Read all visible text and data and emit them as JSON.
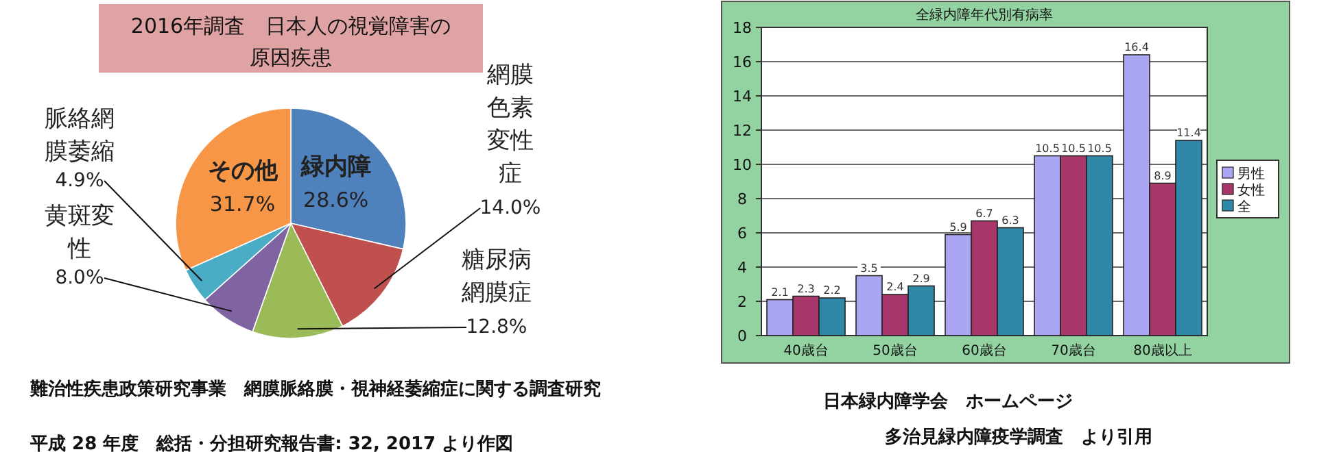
{
  "chart_data": [
    {
      "type": "pie",
      "title": "2016年調査　日本人の視覚障害の原因疾患",
      "categories": [
        "緑内障",
        "網膜色素変性症",
        "糖尿病網膜症",
        "黄斑変性",
        "脈絡網膜萎縮",
        "その他"
      ],
      "values": [
        28.6,
        14.0,
        12.8,
        8.0,
        4.9,
        31.7
      ],
      "value_labels": [
        "28.6%",
        "14.0%",
        "12.8%",
        "8.0%",
        "4.9%",
        "31.7%"
      ],
      "colors": [
        "#4f81bd",
        "#c0504d",
        "#9bbb59",
        "#8064a2",
        "#4bacc6",
        "#f79646"
      ],
      "annotations": [
        "難治性疾患政策研究事業　網膜脈絡膜・視神経萎縮症に関する調査研究",
        "平成 28 年度　総括・分担研究報告書: 32, 2017 より作図"
      ]
    },
    {
      "type": "bar",
      "title": "全緑内障年代別有病率",
      "categories": [
        "40歳台",
        "50歳台",
        "60歳台",
        "70歳台",
        "80歳以上"
      ],
      "series": [
        {
          "name": "男性",
          "color": "#aaa6f4",
          "values": [
            2.1,
            3.5,
            5.9,
            10.5,
            16.4
          ]
        },
        {
          "name": "女性",
          "color": "#a8366b",
          "values": [
            2.3,
            2.4,
            6.7,
            10.5,
            8.9
          ]
        },
        {
          "name": "全",
          "color": "#2f88a8",
          "values": [
            2.2,
            2.9,
            6.3,
            10.5,
            11.4
          ]
        }
      ],
      "ylim": [
        0,
        18
      ],
      "yticks": [
        0,
        2,
        4,
        6,
        8,
        10,
        12,
        14,
        16,
        18
      ],
      "grid": "y",
      "legend": "right",
      "data_labels": true,
      "annotations": [
        "日本緑内障学会　ホームページ",
        "多治見緑内障疫学調査　より引用"
      ]
    }
  ]
}
